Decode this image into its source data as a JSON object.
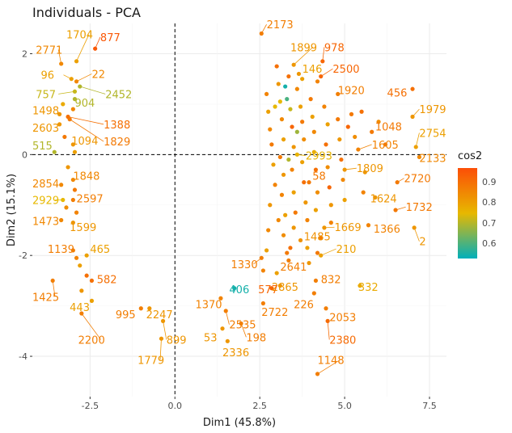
{
  "chart_data": {
    "type": "scatter",
    "title": "Individuals - PCA",
    "xlabel": "Dim1 (45.8%)",
    "ylabel": "Dim2 (15.1%)",
    "xlim": [
      -4.2,
      8.0
    ],
    "ylim": [
      -4.8,
      2.6
    ],
    "x_ticks": [
      -2.5,
      0.0,
      2.5,
      5.0,
      7.5
    ],
    "x_tick_labels": [
      "-2.5",
      "0.0",
      "2.5",
      "5.0",
      "7.5"
    ],
    "y_ticks": [
      -4,
      -2,
      0,
      2
    ],
    "y_tick_labels": [
      "-4",
      "-2",
      "0",
      "2"
    ],
    "reference_lines": {
      "x": 0,
      "y": 0,
      "style": "dashed"
    },
    "grid": true,
    "legend": {
      "title": "cos2",
      "placement": "right",
      "ticks": [
        "0.9",
        "0.8",
        "0.7",
        "0.6"
      ],
      "tick_values": [
        0.9,
        0.8,
        0.7,
        0.6
      ],
      "range": [
        0.53,
        0.97
      ],
      "colors": [
        "#FC4E07",
        "#E7B800",
        "#00AFBB"
      ]
    },
    "labeled_points": [
      {
        "label": "2173",
        "x": 2.55,
        "y": 2.4,
        "cos2": 0.87,
        "lx": 2.7,
        "ly": 2.5
      },
      {
        "label": "877",
        "x": -2.35,
        "y": 2.1,
        "cos2": 0.95,
        "lx": -2.2,
        "ly": 2.25
      },
      {
        "label": "1704",
        "x": -2.9,
        "y": 1.85,
        "cos2": 0.8,
        "lx": -3.2,
        "ly": 2.3
      },
      {
        "label": "2771",
        "x": -3.35,
        "y": 1.8,
        "cos2": 0.85,
        "lx": -4.1,
        "ly": 2.0
      },
      {
        "label": "1899",
        "x": 3.5,
        "y": 1.78,
        "cos2": 0.82,
        "lx": 3.4,
        "ly": 2.05
      },
      {
        "label": "978",
        "x": 4.35,
        "y": 1.85,
        "cos2": 0.92,
        "lx": 4.4,
        "ly": 2.05
      },
      {
        "label": "96",
        "x": -3.05,
        "y": 1.5,
        "cos2": 0.8,
        "lx": -3.95,
        "ly": 1.5
      },
      {
        "label": "22",
        "x": -2.9,
        "y": 1.45,
        "cos2": 0.85,
        "lx": -2.45,
        "ly": 1.52
      },
      {
        "label": "146",
        "x": 3.75,
        "y": 1.5,
        "cos2": 0.8,
        "lx": 3.75,
        "ly": 1.62
      },
      {
        "label": "2500",
        "x": 4.3,
        "y": 1.55,
        "cos2": 0.92,
        "lx": 4.65,
        "ly": 1.62
      },
      {
        "label": "2452",
        "x": -2.8,
        "y": 1.35,
        "cos2": 0.7,
        "lx": -2.05,
        "ly": 1.12
      },
      {
        "label": "757",
        "x": -2.95,
        "y": 1.25,
        "cos2": 0.72,
        "lx": -4.1,
        "ly": 1.12
      },
      {
        "label": "904",
        "x": -2.95,
        "y": 1.1,
        "cos2": 0.7,
        "lx": -2.95,
        "ly": 0.95
      },
      {
        "label": "456",
        "x": 7.0,
        "y": 1.3,
        "cos2": 0.9,
        "lx": 6.25,
        "ly": 1.15
      },
      {
        "label": "1920",
        "x": 4.8,
        "y": 1.2,
        "cos2": 0.87,
        "lx": 4.8,
        "ly": 1.2
      },
      {
        "label": "1498",
        "x": -3.4,
        "y": 0.8,
        "cos2": 0.82,
        "lx": -4.2,
        "ly": 0.8
      },
      {
        "label": "1388",
        "x": -3.15,
        "y": 0.75,
        "cos2": 0.9,
        "lx": -2.1,
        "ly": 0.52
      },
      {
        "label": "1979",
        "x": 7.0,
        "y": 0.75,
        "cos2": 0.82,
        "lx": 7.2,
        "ly": 0.82
      },
      {
        "label": "2603",
        "x": -3.4,
        "y": 0.6,
        "cos2": 0.82,
        "lx": -4.2,
        "ly": 0.45
      },
      {
        "label": "1048",
        "x": 5.8,
        "y": 0.45,
        "cos2": 0.88,
        "lx": 5.9,
        "ly": 0.48
      },
      {
        "label": "1829",
        "x": -3.1,
        "y": 0.7,
        "cos2": 0.88,
        "lx": -2.1,
        "ly": 0.18
      },
      {
        "label": "2754",
        "x": 7.1,
        "y": 0.15,
        "cos2": 0.8,
        "lx": 7.2,
        "ly": 0.35
      },
      {
        "label": "1094",
        "x": -3.0,
        "y": 0.2,
        "cos2": 0.82,
        "lx": -3.05,
        "ly": 0.2
      },
      {
        "label": "515",
        "x": -3.55,
        "y": 0.05,
        "cos2": 0.7,
        "lx": -4.2,
        "ly": 0.1
      },
      {
        "label": "1605",
        "x": 5.4,
        "y": 0.1,
        "cos2": 0.86,
        "lx": 5.8,
        "ly": 0.12
      },
      {
        "label": "2133",
        "x": 7.2,
        "y": -0.05,
        "cos2": 0.85,
        "lx": 7.2,
        "ly": -0.15
      },
      {
        "label": "2993",
        "x": 3.6,
        "y": 0.0,
        "cos2": 0.76,
        "lx": 3.85,
        "ly": -0.1
      },
      {
        "label": "1809",
        "x": 5.0,
        "y": -0.3,
        "cos2": 0.82,
        "lx": 5.35,
        "ly": -0.35
      },
      {
        "label": "58",
        "x": 3.95,
        "y": -0.55,
        "cos2": 0.88,
        "lx": 4.05,
        "ly": -0.5
      },
      {
        "label": "1848",
        "x": -3.0,
        "y": -0.5,
        "cos2": 0.85,
        "lx": -3.0,
        "ly": -0.5
      },
      {
        "label": "2854",
        "x": -3.35,
        "y": -0.6,
        "cos2": 0.85,
        "lx": -4.2,
        "ly": -0.65
      },
      {
        "label": "2720",
        "x": 6.55,
        "y": -0.55,
        "cos2": 0.88,
        "lx": 6.75,
        "ly": -0.55
      },
      {
        "label": "2929",
        "x": -3.3,
        "y": -0.9,
        "cos2": 0.75,
        "lx": -4.2,
        "ly": -0.98
      },
      {
        "label": "2597",
        "x": -3.0,
        "y": -0.9,
        "cos2": 0.87,
        "lx": -2.9,
        "ly": -0.95
      },
      {
        "label": "1624",
        "x": 5.9,
        "y": -0.85,
        "cos2": 0.82,
        "lx": 5.75,
        "ly": -0.95
      },
      {
        "label": "1732",
        "x": 6.5,
        "y": -1.1,
        "cos2": 0.88,
        "lx": 6.8,
        "ly": -1.12
      },
      {
        "label": "1473",
        "x": -3.35,
        "y": -1.3,
        "cos2": 0.85,
        "lx": -4.2,
        "ly": -1.4
      },
      {
        "label": "1599",
        "x": -3.0,
        "y": -1.35,
        "cos2": 0.82,
        "lx": -3.1,
        "ly": -1.52
      },
      {
        "label": "1669",
        "x": 4.4,
        "y": -1.45,
        "cos2": 0.82,
        "lx": 4.7,
        "ly": -1.52
      },
      {
        "label": "1366",
        "x": 5.7,
        "y": -1.4,
        "cos2": 0.86,
        "lx": 5.85,
        "ly": -1.55
      },
      {
        "label": "2",
        "x": 7.05,
        "y": -1.45,
        "cos2": 0.82,
        "lx": 7.2,
        "ly": -1.8
      },
      {
        "label": "1485",
        "x": 3.7,
        "y": -1.7,
        "cos2": 0.83,
        "lx": 3.8,
        "ly": -1.7
      },
      {
        "label": "1139",
        "x": -3.0,
        "y": -1.9,
        "cos2": 0.87,
        "lx": -3.75,
        "ly": -1.95
      },
      {
        "label": "465",
        "x": -2.6,
        "y": -2.0,
        "cos2": 0.8,
        "lx": -2.5,
        "ly": -1.95
      },
      {
        "label": "210",
        "x": 4.3,
        "y": -2.0,
        "cos2": 0.8,
        "lx": 4.75,
        "ly": -1.95
      },
      {
        "label": "1330",
        "x": 2.55,
        "y": -2.05,
        "cos2": 0.87,
        "lx": 1.65,
        "ly": -2.25
      },
      {
        "label": "2641",
        "x": 3.35,
        "y": -2.1,
        "cos2": 0.87,
        "lx": 3.1,
        "ly": -2.3
      },
      {
        "label": "582",
        "x": -2.45,
        "y": -2.5,
        "cos2": 0.9,
        "lx": -2.3,
        "ly": -2.55
      },
      {
        "label": "832",
        "x": 4.15,
        "y": -2.5,
        "cos2": 0.87,
        "lx": 4.3,
        "ly": -2.55
      },
      {
        "label": "332",
        "x": 5.45,
        "y": -2.6,
        "cos2": 0.78,
        "lx": 5.4,
        "ly": -2.7
      },
      {
        "label": "1425",
        "x": -3.6,
        "y": -2.5,
        "cos2": 0.87,
        "lx": -4.2,
        "ly": -2.9
      },
      {
        "label": "2865",
        "x": 3.1,
        "y": -2.6,
        "cos2": 0.82,
        "lx": 2.85,
        "ly": -2.7
      },
      {
        "label": "577",
        "x": 2.85,
        "y": -2.65,
        "cos2": 0.92,
        "lx": 2.45,
        "ly": -2.75
      },
      {
        "label": "406",
        "x": 1.75,
        "y": -2.65,
        "cos2": 0.55,
        "lx": 1.6,
        "ly": -2.75
      },
      {
        "label": "226",
        "x": 4.1,
        "y": -2.75,
        "cos2": 0.87,
        "lx": 3.5,
        "ly": -3.05
      },
      {
        "label": "443",
        "x": -2.45,
        "y": -2.9,
        "cos2": 0.8,
        "lx": -3.1,
        "ly": -3.1
      },
      {
        "label": "1370",
        "x": 1.35,
        "y": -2.85,
        "cos2": 0.86,
        "lx": 0.6,
        "ly": -3.05
      },
      {
        "label": "2722",
        "x": 2.6,
        "y": -2.95,
        "cos2": 0.87,
        "lx": 2.55,
        "ly": -3.2
      },
      {
        "label": "2053",
        "x": 4.45,
        "y": -3.05,
        "cos2": 0.87,
        "lx": 4.55,
        "ly": -3.3
      },
      {
        "label": "995",
        "x": -1.0,
        "y": -3.05,
        "cos2": 0.87,
        "lx": -1.75,
        "ly": -3.25
      },
      {
        "label": "2247",
        "x": -0.75,
        "y": -3.05,
        "cos2": 0.82,
        "lx": -0.85,
        "ly": -3.25
      },
      {
        "label": "2535",
        "x": 1.5,
        "y": -3.1,
        "cos2": 0.87,
        "lx": 1.6,
        "ly": -3.45
      },
      {
        "label": "2200",
        "x": -2.75,
        "y": -3.15,
        "cos2": 0.87,
        "lx": -2.85,
        "ly": -3.75
      },
      {
        "label": "899",
        "x": -0.35,
        "y": -3.3,
        "cos2": 0.82,
        "lx": -0.25,
        "ly": -3.75
      },
      {
        "label": "53",
        "x": 1.4,
        "y": -3.45,
        "cos2": 0.82,
        "lx": 0.85,
        "ly": -3.7
      },
      {
        "label": "198",
        "x": 1.95,
        "y": -3.35,
        "cos2": 0.87,
        "lx": 2.1,
        "ly": -3.7
      },
      {
        "label": "2380",
        "x": 4.5,
        "y": -3.3,
        "cos2": 0.91,
        "lx": 4.55,
        "ly": -3.75
      },
      {
        "label": "1779",
        "x": -0.4,
        "y": -3.65,
        "cos2": 0.82,
        "lx": -1.1,
        "ly": -4.15
      },
      {
        "label": "2336",
        "x": 1.55,
        "y": -3.7,
        "cos2": 0.82,
        "lx": 1.4,
        "ly": -4.0
      },
      {
        "label": "1148",
        "x": 4.2,
        "y": -4.35,
        "cos2": 0.87,
        "lx": 4.2,
        "ly": -4.15
      }
    ],
    "unlabeled_points": [
      {
        "x": 2.7,
        "y": 1.2,
        "cos2": 0.86
      },
      {
        "x": 2.75,
        "y": 0.85,
        "cos2": 0.8
      },
      {
        "x": 2.8,
        "y": 0.5,
        "cos2": 0.85
      },
      {
        "x": 2.85,
        "y": 0.2,
        "cos2": 0.88
      },
      {
        "x": 2.9,
        "y": -0.2,
        "cos2": 0.8
      },
      {
        "x": 2.95,
        "y": -0.6,
        "cos2": 0.86
      },
      {
        "x": 2.8,
        "y": -1.0,
        "cos2": 0.82
      },
      {
        "x": 2.75,
        "y": -1.5,
        "cos2": 0.85
      },
      {
        "x": 2.7,
        "y": -1.9,
        "cos2": 0.8
      },
      {
        "x": 3.0,
        "y": 1.75,
        "cos2": 0.9
      },
      {
        "x": 3.05,
        "y": 1.4,
        "cos2": 0.82
      },
      {
        "x": 3.1,
        "y": 1.05,
        "cos2": 0.75
      },
      {
        "x": 3.15,
        "y": 0.7,
        "cos2": 0.85
      },
      {
        "x": 3.2,
        "y": 0.3,
        "cos2": 0.8
      },
      {
        "x": 3.1,
        "y": -0.05,
        "cos2": 0.88
      },
      {
        "x": 3.2,
        "y": -0.4,
        "cos2": 0.82
      },
      {
        "x": 3.15,
        "y": -0.8,
        "cos2": 0.86
      },
      {
        "x": 3.25,
        "y": -1.2,
        "cos2": 0.8
      },
      {
        "x": 3.2,
        "y": -1.6,
        "cos2": 0.84
      },
      {
        "x": 3.3,
        "y": -1.95,
        "cos2": 0.88
      },
      {
        "x": 3.3,
        "y": 1.1,
        "cos2": 0.6
      },
      {
        "x": 3.4,
        "y": 0.9,
        "cos2": 0.72
      },
      {
        "x": 3.45,
        "y": 0.55,
        "cos2": 0.92
      },
      {
        "x": 3.5,
        "y": 0.15,
        "cos2": 0.82
      },
      {
        "x": 3.45,
        "y": -0.3,
        "cos2": 0.86
      },
      {
        "x": 3.5,
        "y": -0.75,
        "cos2": 0.8
      },
      {
        "x": 3.55,
        "y": -1.15,
        "cos2": 0.88
      },
      {
        "x": 3.5,
        "y": -1.45,
        "cos2": 0.82
      },
      {
        "x": 3.6,
        "y": 1.3,
        "cos2": 0.85
      },
      {
        "x": 3.7,
        "y": 0.95,
        "cos2": 0.8
      },
      {
        "x": 3.75,
        "y": 0.65,
        "cos2": 0.88
      },
      {
        "x": 3.8,
        "y": 0.3,
        "cos2": 0.84
      },
      {
        "x": 3.75,
        "y": -0.15,
        "cos2": 0.8
      },
      {
        "x": 3.8,
        "y": -0.55,
        "cos2": 0.9
      },
      {
        "x": 3.85,
        "y": -0.95,
        "cos2": 0.82
      },
      {
        "x": 3.9,
        "y": -1.3,
        "cos2": 0.86
      },
      {
        "x": 3.9,
        "y": -1.85,
        "cos2": 0.8
      },
      {
        "x": 4.0,
        "y": 1.1,
        "cos2": 0.88
      },
      {
        "x": 4.05,
        "y": 0.75,
        "cos2": 0.8
      },
      {
        "x": 4.1,
        "y": 0.45,
        "cos2": 0.85
      },
      {
        "x": 4.1,
        "y": 0.05,
        "cos2": 0.78
      },
      {
        "x": 4.15,
        "y": -0.3,
        "cos2": 0.9
      },
      {
        "x": 4.2,
        "y": -0.75,
        "cos2": 0.84
      },
      {
        "x": 4.15,
        "y": -1.1,
        "cos2": 0.8
      },
      {
        "x": 4.3,
        "y": -1.65,
        "cos2": 0.88
      },
      {
        "x": 4.4,
        "y": 0.95,
        "cos2": 0.86
      },
      {
        "x": 4.5,
        "y": 0.6,
        "cos2": 0.8
      },
      {
        "x": 4.45,
        "y": 0.2,
        "cos2": 0.9
      },
      {
        "x": 4.5,
        "y": -0.25,
        "cos2": 0.84
      },
      {
        "x": 4.55,
        "y": -0.65,
        "cos2": 0.92
      },
      {
        "x": 4.6,
        "y": -1.0,
        "cos2": 0.82
      },
      {
        "x": 4.6,
        "y": -1.35,
        "cos2": 0.86
      },
      {
        "x": 4.8,
        "y": 0.7,
        "cos2": 0.88
      },
      {
        "x": 4.85,
        "y": 0.3,
        "cos2": 0.82
      },
      {
        "x": 4.9,
        "y": -0.1,
        "cos2": 0.9
      },
      {
        "x": 4.95,
        "y": -0.5,
        "cos2": 0.85
      },
      {
        "x": 5.0,
        "y": -0.9,
        "cos2": 0.8
      },
      {
        "x": 5.1,
        "y": 0.55,
        "cos2": 0.92
      },
      {
        "x": 5.2,
        "y": 0.8,
        "cos2": 0.88
      },
      {
        "x": 5.3,
        "y": 0.35,
        "cos2": 0.84
      },
      {
        "x": 5.5,
        "y": 0.85,
        "cos2": 0.9
      },
      {
        "x": 5.6,
        "y": -0.35,
        "cos2": 0.82
      },
      {
        "x": 5.55,
        "y": -0.75,
        "cos2": 0.86
      },
      {
        "x": 6.0,
        "y": 0.65,
        "cos2": 0.84
      },
      {
        "x": 6.2,
        "y": 0.2,
        "cos2": 0.88
      },
      {
        "x": 3.35,
        "y": 1.55,
        "cos2": 0.9
      },
      {
        "x": 3.65,
        "y": 1.6,
        "cos2": 0.82
      },
      {
        "x": 4.2,
        "y": 1.45,
        "cos2": 0.86
      },
      {
        "x": 3.35,
        "y": -0.1,
        "cos2": 0.7
      },
      {
        "x": 3.6,
        "y": 0.45,
        "cos2": 0.68
      },
      {
        "x": 2.95,
        "y": 0.95,
        "cos2": 0.75
      },
      {
        "x": 3.25,
        "y": 1.35,
        "cos2": 0.55
      },
      {
        "x": 3.05,
        "y": -1.3,
        "cos2": 0.85
      },
      {
        "x": 3.4,
        "y": -1.85,
        "cos2": 0.9
      },
      {
        "x": 3.95,
        "y": -2.15,
        "cos2": 0.82
      },
      {
        "x": 4.2,
        "y": -1.95,
        "cos2": 0.88
      },
      {
        "x": 2.6,
        "y": -2.3,
        "cos2": 0.86
      },
      {
        "x": 3.0,
        "y": -2.35,
        "cos2": 0.8
      },
      {
        "x": -3.3,
        "y": 1.0,
        "cos2": 0.78
      },
      {
        "x": -3.0,
        "y": 0.9,
        "cos2": 0.85
      },
      {
        "x": -3.25,
        "y": 0.35,
        "cos2": 0.88
      },
      {
        "x": -2.95,
        "y": 0.05,
        "cos2": 0.8
      },
      {
        "x": -3.15,
        "y": -0.25,
        "cos2": 0.82
      },
      {
        "x": -2.95,
        "y": -0.7,
        "cos2": 0.88
      },
      {
        "x": -3.2,
        "y": -1.05,
        "cos2": 0.84
      },
      {
        "x": -2.9,
        "y": -1.15,
        "cos2": 0.86
      },
      {
        "x": -2.8,
        "y": -2.2,
        "cos2": 0.8
      },
      {
        "x": -2.6,
        "y": -2.4,
        "cos2": 0.9
      },
      {
        "x": -2.9,
        "y": -2.05,
        "cos2": 0.86
      },
      {
        "x": -2.75,
        "y": -2.7,
        "cos2": 0.82
      }
    ]
  }
}
